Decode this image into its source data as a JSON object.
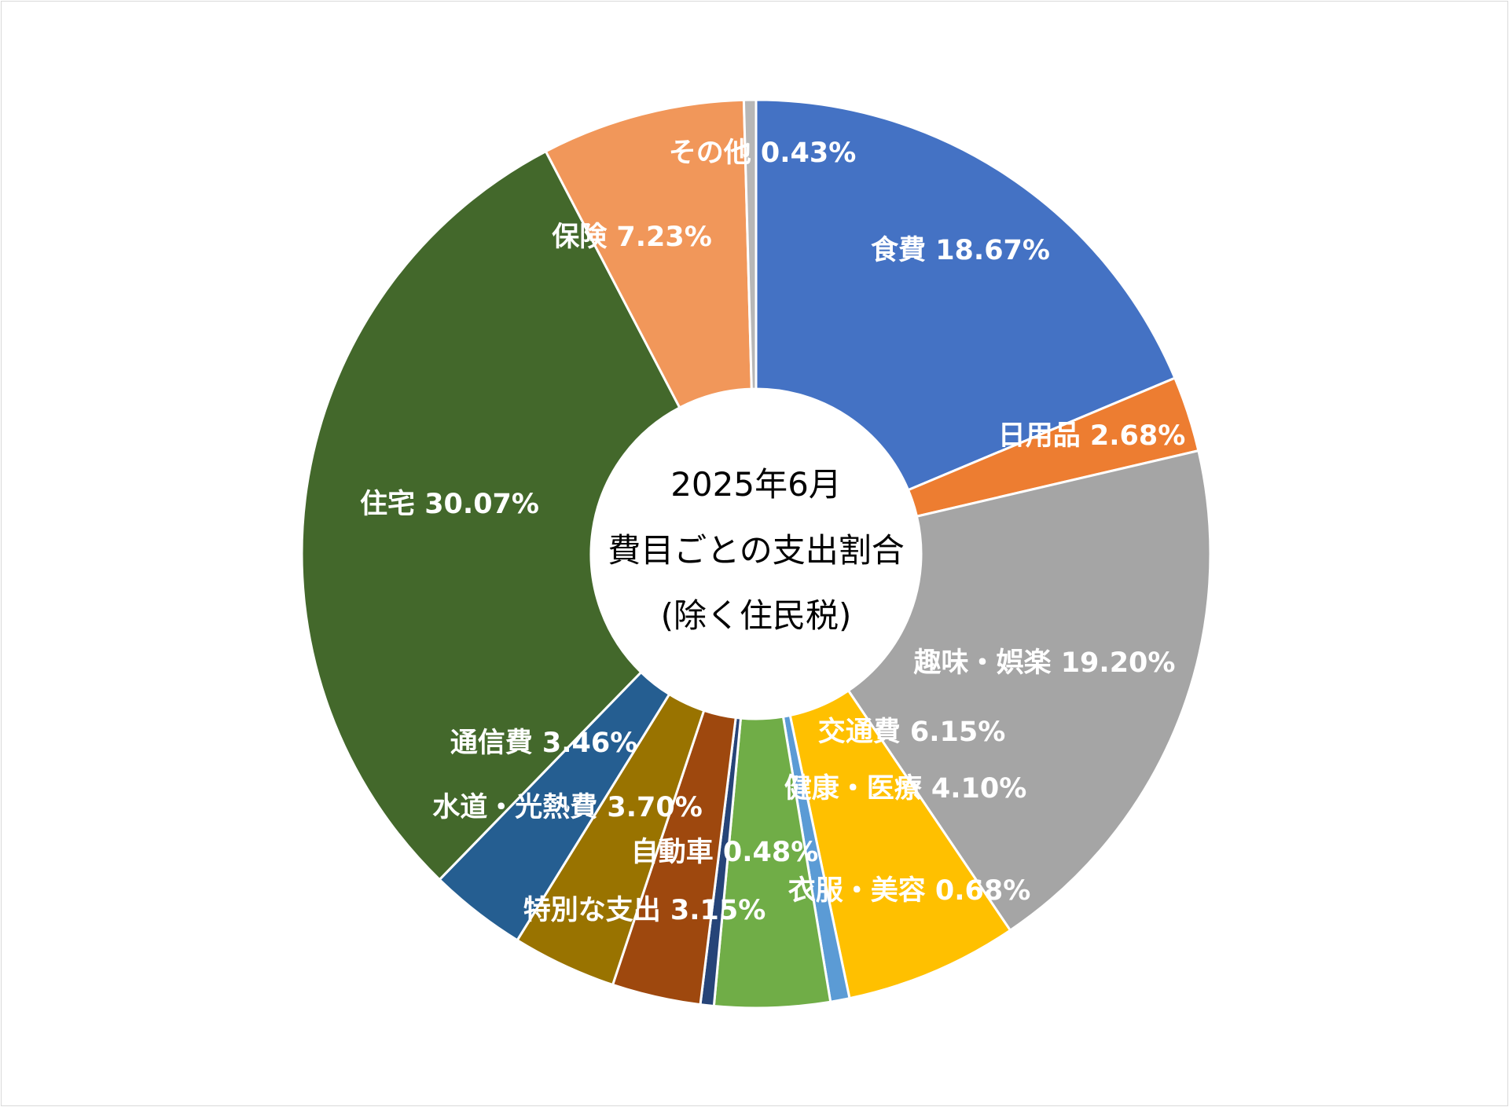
{
  "chart_data": {
    "type": "pie",
    "variant": "doughnut",
    "title": [
      "2025年6月",
      "費目ごとの支出割合",
      "(除く住民税)"
    ],
    "start_angle_deg": 0,
    "direction": "clockwise",
    "legend": "none",
    "slices": [
      {
        "name": "食費",
        "value": 18.67,
        "label": "食費 18.67%",
        "color": "#4472C4"
      },
      {
        "name": "日用品",
        "value": 2.68,
        "label": "日用品 2.68%",
        "color": "#ED7D31"
      },
      {
        "name": "趣味・娯楽",
        "value": 19.2,
        "label": "趣味・娯楽 19.20%",
        "color": "#A5A5A5"
      },
      {
        "name": "交通費",
        "value": 6.15,
        "label": "交通費 6.15%",
        "color": "#FFC000"
      },
      {
        "name": "衣服・美容",
        "value": 0.68,
        "label": "衣服・美容 0.68%",
        "color": "#5B9BD5"
      },
      {
        "name": "健康・医療",
        "value": 4.1,
        "label": "健康・医療 4.10%",
        "color": "#70AD47"
      },
      {
        "name": "自動車",
        "value": 0.48,
        "label": "自動車 0.48%",
        "color": "#264478"
      },
      {
        "name": "特別な支出",
        "value": 3.15,
        "label": "特別な支出 3.15%",
        "color": "#9E480E"
      },
      {
        "name": "水道・光熱費",
        "value": 3.7,
        "label": "水道・光熱費 3.70%",
        "color": "#997300"
      },
      {
        "name": "通信費",
        "value": 3.46,
        "label": "通信費 3.46%",
        "color": "#255E91"
      },
      {
        "name": "住宅",
        "value": 30.07,
        "label": "住宅 30.07%",
        "color": "#43682B"
      },
      {
        "name": "保険",
        "value": 7.23,
        "label": "保険 7.23%",
        "color": "#F1975A"
      },
      {
        "name": "その他",
        "value": 0.43,
        "label": "その他 0.43%",
        "color": "#B7B7B7"
      }
    ]
  }
}
